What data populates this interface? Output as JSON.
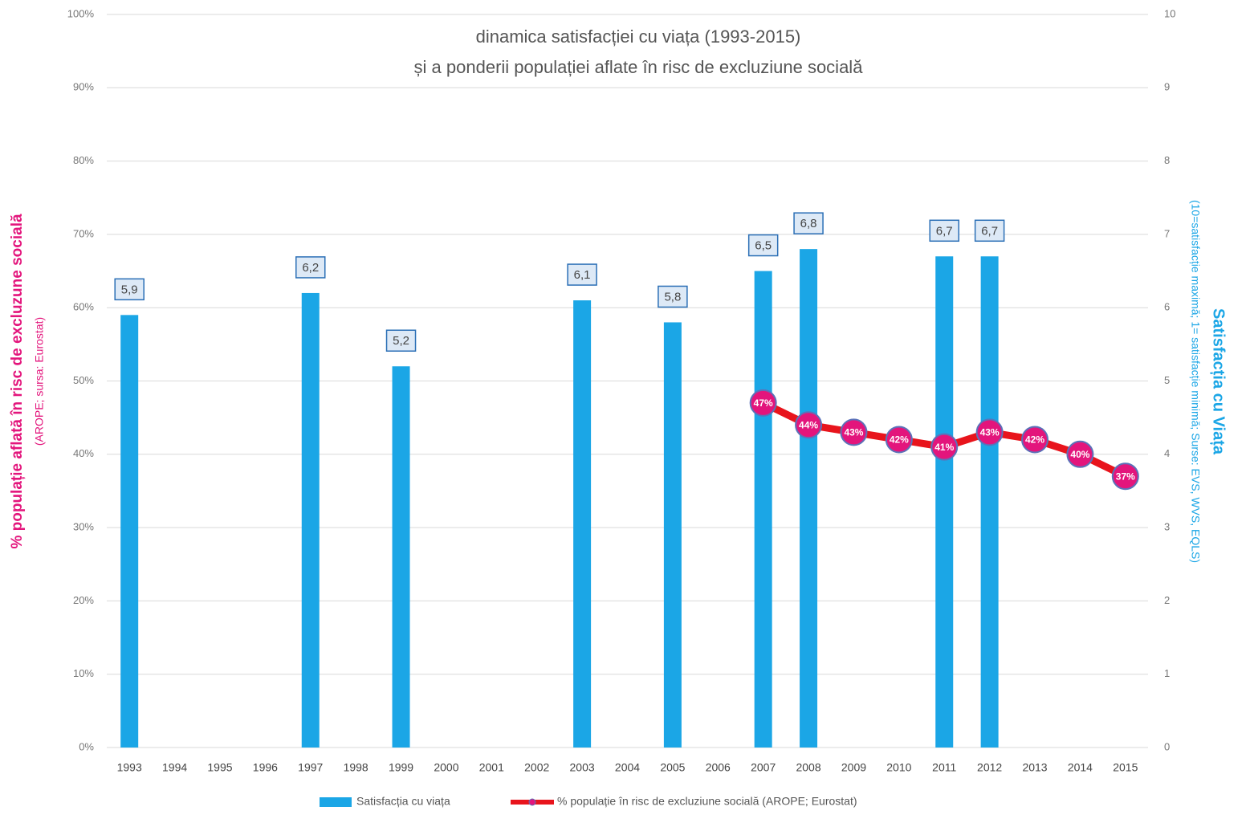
{
  "chart_data": {
    "type": "bar_line",
    "title": [
      "dinamica satisfacției cu viața (1993-2015)",
      "și a ponderii populației aflate în risc de excluziune socială"
    ],
    "y_axis_title": "% populație aflată în risc de excluzune socială",
    "y_axis_subtitle": "(AROPE; sursa: Eurostat)",
    "y2_axis_title": "Satisfacția cu Viața",
    "y2_axis_subtitle": "(10=satisfacție maximă; 1= satisfacție minimă; Surse: EVS, WVS, EQLS)",
    "categories": [
      "1993",
      "1994",
      "1995",
      "1996",
      "1997",
      "1998",
      "1999",
      "2000",
      "2001",
      "2002",
      "2003",
      "2004",
      "2005",
      "2006",
      "2007",
      "2008",
      "2009",
      "2010",
      "2011",
      "2012",
      "2013",
      "2014",
      "2015"
    ],
    "series": [
      {
        "name": "Satisfacția cu viața",
        "type": "bar",
        "axis": "y2",
        "color": "#1ba6e6",
        "values": [
          5.9,
          null,
          null,
          null,
          6.2,
          null,
          5.2,
          null,
          null,
          null,
          6.1,
          null,
          5.8,
          null,
          6.5,
          6.8,
          null,
          null,
          6.7,
          6.7,
          null,
          null,
          null
        ],
        "value_labels": [
          "5,9",
          null,
          null,
          null,
          "6,2",
          null,
          "5,2",
          null,
          null,
          null,
          "6,1",
          null,
          "5,8",
          null,
          "6,5",
          "6,8",
          null,
          null,
          "6,7",
          "6,7",
          null,
          null,
          null
        ]
      },
      {
        "name": "% populație în risc de excluziune socială (AROPE; Eurostat)",
        "type": "line",
        "axis": "y",
        "color": "#e8141c",
        "marker_color": "#e3157c",
        "values": [
          null,
          null,
          null,
          null,
          null,
          null,
          null,
          null,
          null,
          null,
          null,
          null,
          null,
          null,
          47,
          44,
          43,
          42,
          41,
          43,
          42,
          40,
          37
        ],
        "value_labels": [
          null,
          null,
          null,
          null,
          null,
          null,
          null,
          null,
          null,
          null,
          null,
          null,
          null,
          null,
          "47%",
          "44%",
          "43%",
          "42%",
          "41%",
          "43%",
          "42%",
          "40%",
          "37%"
        ]
      }
    ],
    "ylim": [
      0,
      100
    ],
    "yticks": [
      {
        "value": 0,
        "label": "0%"
      },
      {
        "value": 10,
        "label": "10%"
      },
      {
        "value": 20,
        "label": "20%"
      },
      {
        "value": 30,
        "label": "30%"
      },
      {
        "value": 40,
        "label": "40%"
      },
      {
        "value": 50,
        "label": "50%"
      },
      {
        "value": 60,
        "label": "60%"
      },
      {
        "value": 70,
        "label": "70%"
      },
      {
        "value": 80,
        "label": "80%"
      },
      {
        "value": 90,
        "label": "90%"
      },
      {
        "value": 100,
        "label": "100%"
      }
    ],
    "y2lim": [
      0,
      10
    ],
    "y2ticks": [
      0,
      1,
      2,
      3,
      4,
      5,
      6,
      7,
      8,
      9,
      10
    ],
    "grid": true
  }
}
